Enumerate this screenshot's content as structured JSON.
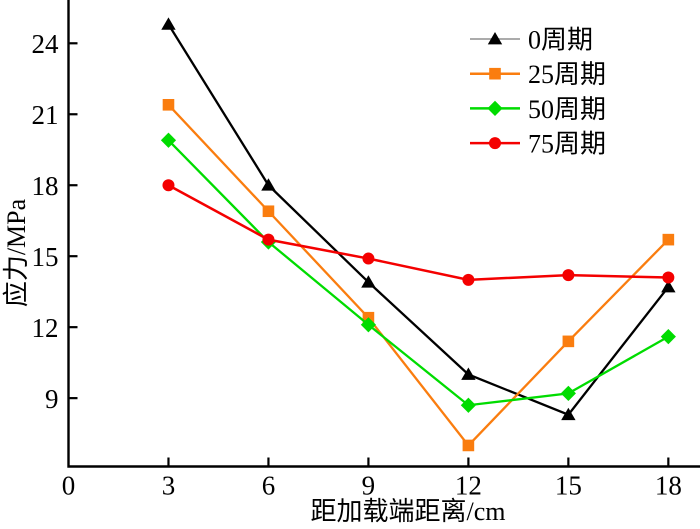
{
  "figure": {
    "background": "#ffffff",
    "axis_color": "#000000",
    "tick_label_color": "#000000"
  },
  "chart_data": {
    "type": "line",
    "title": "",
    "xlabel": "距加载端距离/cm",
    "ylabel": "应力/MPa",
    "x": [
      3,
      6,
      9,
      12,
      15,
      18
    ],
    "series": [
      {
        "name": "0周期",
        "marker": "triangle",
        "color": "#000000",
        "legend_line_color": "#8f8f8f",
        "values": [
          24.8,
          18.0,
          13.9,
          10.0,
          8.3,
          13.7
        ]
      },
      {
        "name": "25周期",
        "marker": "square",
        "color": "#fa7d0f",
        "legend_line_color": "#fa7d0f",
        "values": [
          21.4,
          16.9,
          12.4,
          7.0,
          11.4,
          15.7
        ]
      },
      {
        "name": "50周期",
        "marker": "diamond",
        "color": "#00dc00",
        "legend_line_color": "#00dc00",
        "values": [
          19.9,
          15.6,
          12.1,
          8.7,
          9.2,
          11.6
        ]
      },
      {
        "name": "75周期",
        "marker": "circle",
        "color": "#f40000",
        "legend_line_color": "#f40000",
        "values": [
          18.0,
          15.7,
          14.9,
          14.0,
          14.2,
          14.1
        ]
      }
    ],
    "xticks": [
      0,
      3,
      6,
      9,
      12,
      15,
      18
    ],
    "yticks": [
      9,
      12,
      15,
      18,
      21,
      24
    ],
    "xlim": [
      0,
      18.95
    ],
    "ylim": [
      6.11,
      25.83
    ],
    "grid": false,
    "legend_position": "top-right"
  }
}
